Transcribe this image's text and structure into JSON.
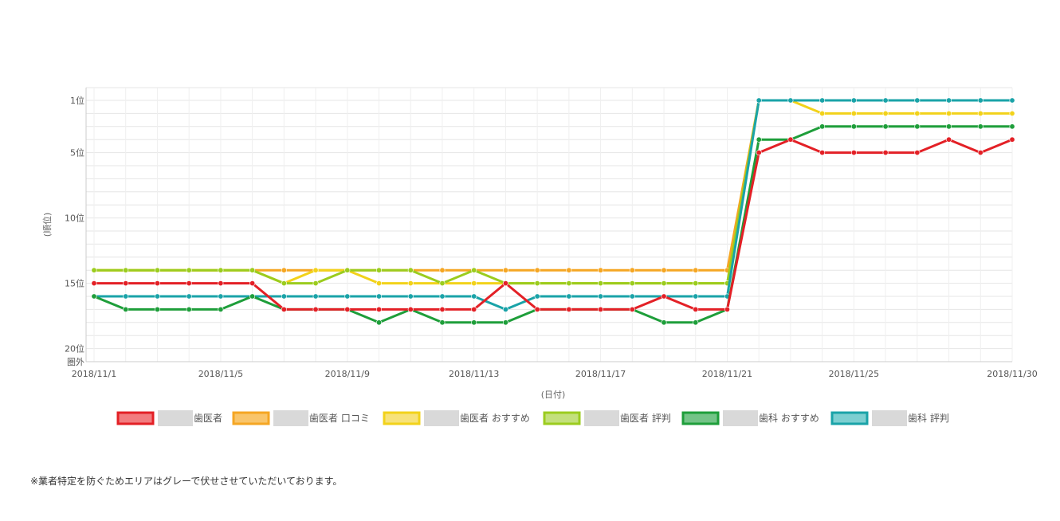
{
  "chart_data": {
    "type": "line",
    "ylabel": "(順位)",
    "xlabel": "(日付)",
    "y_inverted": true,
    "ylim": [
      1,
      21
    ],
    "ytick_labels": [
      {
        "value": 1,
        "label": "1位"
      },
      {
        "value": 5,
        "label": "5位"
      },
      {
        "value": 10,
        "label": "10位"
      },
      {
        "value": 15,
        "label": "15位"
      },
      {
        "value": 20,
        "label": "20位"
      },
      {
        "value": 21,
        "label": "圏外"
      }
    ],
    "x": [
      "2018/11/1",
      "2018/11/2",
      "2018/11/3",
      "2018/11/4",
      "2018/11/5",
      "2018/11/6",
      "2018/11/7",
      "2018/11/8",
      "2018/11/9",
      "2018/11/10",
      "2018/11/11",
      "2018/11/12",
      "2018/11/13",
      "2018/11/14",
      "2018/11/15",
      "2018/11/16",
      "2018/11/17",
      "2018/11/18",
      "2018/11/19",
      "2018/11/20",
      "2018/11/21",
      "2018/11/22",
      "2018/11/23",
      "2018/11/24",
      "2018/11/25",
      "2018/11/26",
      "2018/11/27",
      "2018/11/28",
      "2018/11/29",
      "2018/11/30"
    ],
    "xtick_labels": [
      "2018/11/1",
      "2018/11/5",
      "2018/11/9",
      "2018/11/13",
      "2018/11/17",
      "2018/11/21",
      "2018/11/25",
      "2018/11/30"
    ],
    "grid": true,
    "legend_position": "bottom",
    "series": [
      {
        "name": "歯医者 口コミ",
        "color": "#f5a623",
        "fill": "#f9c56b",
        "values": [
          14,
          14,
          14,
          14,
          14,
          14,
          14,
          14,
          14,
          14,
          14,
          14,
          14,
          14,
          14,
          14,
          14,
          14,
          14,
          14,
          14,
          1,
          1,
          1,
          1,
          1,
          1,
          1,
          1,
          1
        ]
      },
      {
        "name": "歯医者 おすすめ",
        "color": "#f2d21a",
        "fill": "#f7e27a",
        "values": [
          14,
          14,
          14,
          14,
          14,
          14,
          15,
          14,
          14,
          15,
          15,
          15,
          15,
          15,
          15,
          15,
          15,
          15,
          15,
          15,
          15,
          1,
          1,
          2,
          2,
          2,
          2,
          2,
          2,
          2
        ]
      },
      {
        "name": "歯医者 評判",
        "color": "#9bcc1e",
        "fill": "#c3e07c",
        "values": [
          14,
          14,
          14,
          14,
          14,
          14,
          15,
          15,
          14,
          14,
          14,
          15,
          14,
          15,
          15,
          15,
          15,
          15,
          15,
          15,
          15,
          1,
          1,
          1,
          1,
          1,
          1,
          1,
          1,
          1
        ]
      },
      {
        "name": "歯科 評判",
        "color": "#1aa3a8",
        "fill": "#7ccfd1",
        "values": [
          16,
          16,
          16,
          16,
          16,
          16,
          16,
          16,
          16,
          16,
          16,
          16,
          16,
          17,
          16,
          16,
          16,
          16,
          16,
          16,
          16,
          1,
          1,
          1,
          1,
          1,
          1,
          1,
          1,
          1
        ]
      },
      {
        "name": "歯科 おすすめ",
        "color": "#1e9e3a",
        "fill": "#73c487",
        "values": [
          16,
          17,
          17,
          17,
          17,
          16,
          17,
          17,
          17,
          18,
          17,
          18,
          18,
          18,
          17,
          17,
          17,
          17,
          18,
          18,
          17,
          4,
          4,
          3,
          3,
          3,
          3,
          3,
          3,
          3
        ]
      },
      {
        "name": "歯医者",
        "color": "#e32026",
        "fill": "#f27c7f",
        "values": [
          15,
          15,
          15,
          15,
          15,
          15,
          17,
          17,
          17,
          17,
          17,
          17,
          17,
          15,
          17,
          17,
          17,
          17,
          16,
          17,
          17,
          5,
          4,
          5,
          5,
          5,
          5,
          4,
          5,
          4
        ]
      }
    ],
    "legend_order": [
      "歯医者",
      "歯医者 口コミ",
      "歯医者 おすすめ",
      "歯医者 評判",
      "歯科 おすすめ",
      "歯科 評判"
    ]
  },
  "footnote": "※業者特定を防ぐためエリアはグレーで伏せさせていただいております。"
}
